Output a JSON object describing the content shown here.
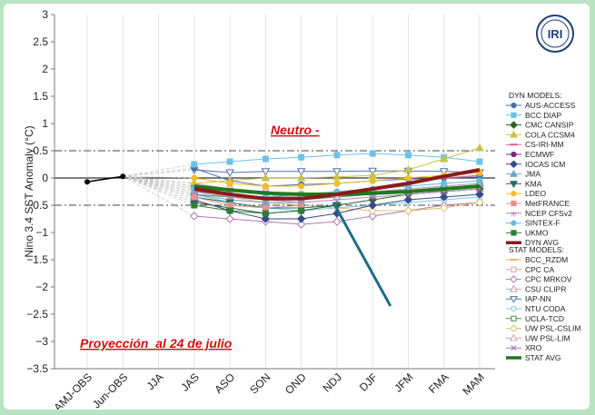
{
  "chart_data": {
    "type": "line",
    "ylabel": "Nino 3.4 SST Anomaly (°C)",
    "ylim": [
      -3.5,
      3
    ],
    "yticks": [
      3,
      2.5,
      2,
      1.5,
      1,
      0.5,
      0,
      -0.5,
      -1,
      -1.5,
      -2,
      -2.5,
      -3,
      -3.5
    ],
    "ytick_labels": [
      "3",
      "2.5",
      "2",
      "1.5",
      "1",
      "0.5",
      "0",
      "−0.5",
      "−1",
      "−1.5",
      "−2",
      "−2.5",
      "−3",
      "−3.5"
    ],
    "categories": [
      "AMJ-OBS",
      "Jun-OBS",
      "JJA",
      "JAS",
      "ASO",
      "SON",
      "OND",
      "NDJ",
      "DJF",
      "JFM",
      "FMA",
      "MAM"
    ],
    "threshold_lines": [
      0.5,
      -0.5
    ],
    "observed": {
      "name": "",
      "color": "#000000",
      "values": [
        -0.07,
        0.03
      ]
    },
    "annotations": {
      "phase_label": "Neutro -",
      "date_note": "Proyección  al 24 de julio"
    },
    "logo_text": "IRI",
    "dyn_title": "DYN MODELS:",
    "stat_title": "STAT MODELS:",
    "dyn_series": [
      {
        "name": "AUS-ACCESS",
        "color": "#4a6fa5",
        "marker": "circle",
        "values": [
          null,
          null,
          null,
          0.18,
          -0.05,
          -0.15,
          -0.12,
          -0.1,
          -0.05,
          -0.02,
          0.0,
          0.02
        ]
      },
      {
        "name": "BCC DIAP",
        "color": "#6cc3e6",
        "marker": "square",
        "values": [
          null,
          null,
          null,
          0.25,
          0.3,
          0.35,
          0.38,
          0.42,
          0.45,
          0.42,
          0.38,
          0.3
        ]
      },
      {
        "name": "CMC CANSIP",
        "color": "#2e5e2e",
        "marker": "diamond",
        "values": [
          null,
          null,
          null,
          -0.45,
          -0.55,
          -0.65,
          -0.6,
          -0.5,
          -0.4,
          -0.3,
          -0.25,
          -0.2
        ]
      },
      {
        "name": "COLA CCSM4",
        "color": "#c9c24a",
        "marker": "triangle",
        "values": [
          null,
          null,
          null,
          -0.1,
          -0.05,
          0.0,
          0.0,
          0.02,
          0.05,
          0.15,
          0.35,
          0.55
        ]
      },
      {
        "name": "CS-IRI-MM",
        "color": "#e06080",
        "marker": "dash",
        "values": [
          null,
          null,
          null,
          -0.15,
          -0.2,
          -0.25,
          -0.3,
          -0.25,
          -0.2,
          -0.1,
          0.0,
          0.05
        ]
      },
      {
        "name": "ECMWF",
        "color": "#7a2a7a",
        "marker": "circle",
        "values": [
          null,
          null,
          null,
          -0.2,
          -0.3,
          -0.35,
          -0.3,
          null,
          null,
          null,
          null,
          null
        ]
      },
      {
        "name": "IOCAS ICM",
        "color": "#3a4a8a",
        "marker": "diamond",
        "values": [
          null,
          null,
          null,
          -0.4,
          -0.6,
          -0.75,
          -0.75,
          -0.65,
          -0.5,
          -0.4,
          -0.35,
          -0.3
        ]
      },
      {
        "name": "JMA",
        "color": "#6fa0d0",
        "marker": "triangle",
        "values": [
          null,
          null,
          null,
          -0.3,
          -0.4,
          -0.45,
          -0.45,
          null,
          null,
          null,
          null,
          null
        ]
      },
      {
        "name": "KMA",
        "color": "#1f6e5a",
        "marker": "tri-down",
        "values": [
          null,
          null,
          null,
          -0.35,
          -0.45,
          -0.55,
          -0.55,
          -0.5,
          null,
          null,
          null,
          null
        ]
      },
      {
        "name": "LDEO",
        "color": "#f0c020",
        "marker": "circle",
        "values": [
          null,
          null,
          null,
          0.0,
          -0.1,
          -0.15,
          -0.15,
          -0.1,
          -0.05,
          0.0,
          0.05,
          0.1
        ]
      },
      {
        "name": "MetFRANCE",
        "color": "#e89090",
        "marker": "square",
        "values": [
          null,
          null,
          null,
          -0.35,
          -0.5,
          -0.55,
          -0.5,
          null,
          null,
          null,
          null,
          null
        ]
      },
      {
        "name": "NCEP CFSv2",
        "color": "#b088c0",
        "marker": "star",
        "values": [
          null,
          null,
          null,
          -0.25,
          -0.35,
          -0.4,
          -0.45,
          -0.4,
          -0.35,
          -0.3,
          -0.25,
          -0.2
        ]
      },
      {
        "name": "SINTEX-F",
        "color": "#60c0e0",
        "marker": "circle",
        "values": [
          null,
          null,
          null,
          -0.2,
          -0.3,
          -0.35,
          -0.3,
          -0.25,
          -0.2,
          -0.15,
          -0.1,
          -0.05
        ]
      },
      {
        "name": "UKMO",
        "color": "#2e7d32",
        "marker": "square",
        "values": [
          null,
          null,
          null,
          -0.5,
          -0.6,
          -0.65,
          -0.6,
          null,
          null,
          null,
          null,
          null
        ]
      },
      {
        "name": "DYN AVG",
        "color": "#8b1a1a",
        "marker": "line",
        "thick": true,
        "values": [
          null,
          null,
          null,
          -0.2,
          -0.3,
          -0.38,
          -0.38,
          -0.3,
          -0.2,
          -0.1,
          0.03,
          0.15
        ]
      }
    ],
    "stat_series": [
      {
        "name": "BCC_RZDM",
        "color": "#e6b86a",
        "marker": "dash",
        "values": [
          null,
          null,
          null,
          -0.1,
          -0.2,
          -0.25,
          -0.3,
          -0.3,
          -0.25,
          -0.2,
          -0.15,
          -0.1
        ]
      },
      {
        "name": "CPC CA",
        "color": "#e8a0a0",
        "marker": "square-open",
        "values": [
          null,
          null,
          null,
          -0.15,
          -0.2,
          -0.25,
          -0.3,
          -0.3,
          -0.25,
          -0.2,
          -0.15,
          -0.1
        ]
      },
      {
        "name": "CPC MRKOV",
        "color": "#b07ab0",
        "marker": "diamond-open",
        "values": [
          null,
          null,
          null,
          -0.7,
          -0.75,
          -0.8,
          -0.85,
          -0.8,
          -0.7,
          -0.6,
          -0.5,
          -0.45
        ]
      },
      {
        "name": "CSU CLIPR",
        "color": "#c0a0c0",
        "marker": "triangle-open",
        "values": [
          null,
          null,
          null,
          -0.25,
          -0.3,
          -0.35,
          -0.35,
          -0.3,
          -0.25,
          -0.2,
          -0.15,
          -0.1
        ]
      },
      {
        "name": "IAP-NN",
        "color": "#5070b0",
        "marker": "tri-down-open",
        "values": [
          null,
          null,
          null,
          0.15,
          0.1,
          0.12,
          0.12,
          0.12,
          0.13,
          0.13,
          0.12,
          0.1
        ]
      },
      {
        "name": "NTU CODA",
        "color": "#80c8e0",
        "marker": "circle-open",
        "values": [
          null,
          null,
          null,
          -0.3,
          -0.45,
          -0.55,
          -0.6,
          -0.55,
          -0.5,
          -0.45,
          -0.4,
          -0.35
        ]
      },
      {
        "name": "UCLA-TCD",
        "color": "#4a8a4a",
        "marker": "square-open",
        "values": [
          null,
          null,
          null,
          -0.3,
          -0.35,
          -0.4,
          -0.4,
          -0.35,
          -0.3,
          -0.25,
          -0.2,
          -0.15
        ]
      },
      {
        "name": "UW PSL-CSLIM",
        "color": "#e0c070",
        "marker": "diamond-open",
        "values": [
          null,
          null,
          null,
          -0.2,
          -0.35,
          -0.45,
          -0.5,
          -0.55,
          -0.6,
          -0.6,
          -0.55,
          -0.45
        ]
      },
      {
        "name": "UW PSL-LIM",
        "color": "#e0a0c0",
        "marker": "triangle-open",
        "values": [
          null,
          null,
          null,
          -0.1,
          -0.2,
          -0.25,
          -0.3,
          -0.3,
          -0.3,
          -0.25,
          -0.25,
          -0.2
        ]
      },
      {
        "name": "XRO",
        "color": "#a080c0",
        "marker": "x",
        "values": [
          null,
          null,
          null,
          -0.25,
          -0.3,
          -0.35,
          -0.35,
          -0.3,
          -0.3,
          -0.25,
          -0.2,
          -0.15
        ]
      },
      {
        "name": "STAT AVG",
        "color": "#1e7a1e",
        "marker": "line",
        "thick": true,
        "values": [
          null,
          null,
          null,
          -0.15,
          -0.22,
          -0.28,
          -0.3,
          -0.3,
          -0.28,
          -0.25,
          -0.2,
          -0.15
        ]
      }
    ],
    "pointer_line": {
      "color": "#1f6e85",
      "from": [
        6.9,
        -0.45
      ],
      "to": [
        8.5,
        -2.35
      ]
    }
  }
}
